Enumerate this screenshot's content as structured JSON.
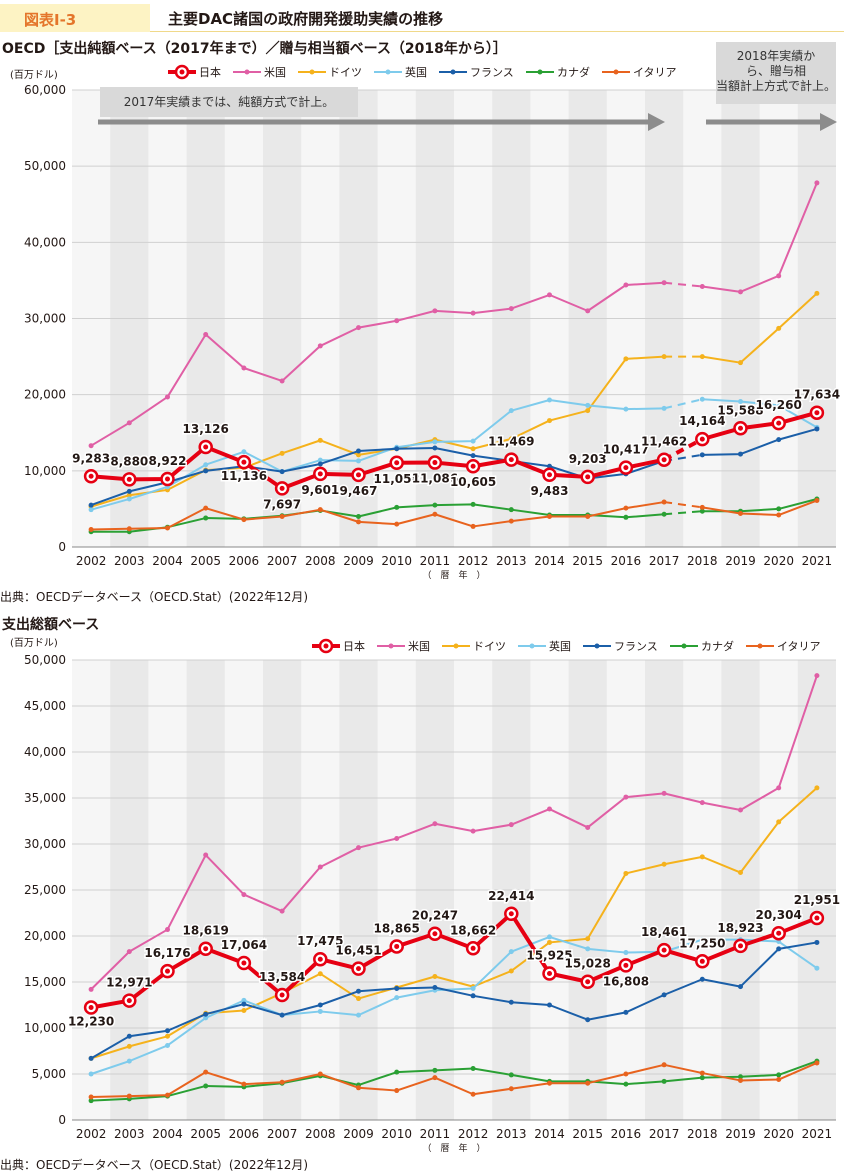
{
  "header": {
    "figure_label": "図表Ⅰ-3",
    "figure_title": "主要DAC諸国の政府開発援助実績の推移"
  },
  "colors": {
    "japan": "#e60012",
    "usa": "#e05fa5",
    "germany": "#f5b21c",
    "uk": "#7ecbec",
    "france": "#1b5fa8",
    "canada": "#2aa034",
    "italy": "#e8631e"
  },
  "legend_labels": [
    "日本",
    "米国",
    "ドイツ",
    "英国",
    "フランス",
    "カナダ",
    "イタリア"
  ],
  "chart_data": [
    {
      "type": "line",
      "title": "OECD［支出純額ベース（2017年まで）／贈与相当額ベース（2018年から）］",
      "ylabel": "(百万ドル)",
      "xlabel": "（　暦　年　）",
      "ylim": [
        0,
        60000
      ],
      "yticks": [
        0,
        10000,
        20000,
        30000,
        40000,
        50000,
        60000
      ],
      "ytick_labels": [
        "0",
        "10,000",
        "20,000",
        "30,000",
        "40,000",
        "50,000",
        "60,000"
      ],
      "categories": [
        "2002",
        "2003",
        "2004",
        "2005",
        "2006",
        "2007",
        "2008",
        "2009",
        "2010",
        "2011",
        "2012",
        "2013",
        "2014",
        "2015",
        "2016",
        "2017",
        "2018",
        "2019",
        "2020",
        "2021"
      ],
      "break_after_index": 15,
      "annotations": [
        "2017年実績までは、純額方式で計上。",
        "2018年実績から、贈与相当額計上方式で計上。"
      ],
      "series": [
        {
          "name": "日本",
          "key": "japan",
          "values": [
            9283,
            8880,
            8922,
            13126,
            11136,
            7697,
            9601,
            9467,
            11058,
            11086,
            10605,
            11469,
            9483,
            9203,
            10417,
            11462,
            14164,
            15588,
            16260,
            17634
          ],
          "labels": [
            "9,283",
            "8,880",
            "8,922",
            "13,126",
            "11,136",
            "7,697",
            "9,601",
            "9,467",
            "11,058",
            "11,086",
            "10,605",
            "11,469",
            "9,483",
            "9,203",
            "10,417",
            "11,462",
            "14,164",
            "15,588",
            "16,260",
            "17,634"
          ]
        },
        {
          "name": "米国",
          "key": "usa",
          "values": [
            13300,
            16300,
            19700,
            27900,
            23500,
            21800,
            26400,
            28800,
            29700,
            31000,
            30700,
            31300,
            33100,
            31000,
            34400,
            34700,
            34200,
            33500,
            35600,
            47800
          ]
        },
        {
          "name": "ドイツ",
          "key": "germany",
          "values": [
            5300,
            6800,
            7500,
            10100,
            10400,
            12300,
            14000,
            12100,
            12900,
            14100,
            12900,
            14200,
            16600,
            17900,
            24700,
            25000,
            25000,
            24200,
            28700,
            33300
          ]
        },
        {
          "name": "英国",
          "key": "uk",
          "values": [
            4900,
            6300,
            7900,
            10800,
            12500,
            9900,
            11400,
            11300,
            13100,
            13800,
            13900,
            17900,
            19300,
            18600,
            18100,
            18200,
            19400,
            19100,
            18600,
            15700
          ]
        },
        {
          "name": "フランス",
          "key": "france",
          "values": [
            5500,
            7300,
            8500,
            10000,
            10600,
            9900,
            10900,
            12600,
            12900,
            13000,
            12000,
            11300,
            10600,
            9000,
            9600,
            11300,
            12100,
            12200,
            14100,
            15500
          ]
        },
        {
          "name": "カナダ",
          "key": "canada",
          "values": [
            2000,
            2000,
            2600,
            3800,
            3700,
            4100,
            4800,
            4000,
            5200,
            5500,
            5600,
            4900,
            4200,
            4200,
            3900,
            4300,
            4700,
            4700,
            5000,
            6300
          ]
        },
        {
          "name": "イタリア",
          "key": "italy",
          "values": [
            2300,
            2400,
            2500,
            5100,
            3600,
            4000,
            4900,
            3300,
            3000,
            4300,
            2700,
            3400,
            4000,
            4000,
            5100,
            5900,
            5200,
            4400,
            4200,
            6100
          ]
        }
      ]
    },
    {
      "type": "line",
      "title": "支出総額ベース",
      "ylabel": "(百万ドル)",
      "xlabel": "（　暦　年　）",
      "ylim": [
        0,
        50000
      ],
      "yticks": [
        0,
        5000,
        10000,
        15000,
        20000,
        25000,
        30000,
        35000,
        40000,
        45000,
        50000
      ],
      "ytick_labels": [
        "0",
        "5,000",
        "10,000",
        "15,000",
        "20,000",
        "25,000",
        "30,000",
        "35,000",
        "40,000",
        "45,000",
        "50,000"
      ],
      "categories": [
        "2002",
        "2003",
        "2004",
        "2005",
        "2006",
        "2007",
        "2008",
        "2009",
        "2010",
        "2011",
        "2012",
        "2013",
        "2014",
        "2015",
        "2016",
        "2017",
        "2018",
        "2019",
        "2020",
        "2021"
      ],
      "break_after_index": -1,
      "series": [
        {
          "name": "日本",
          "key": "japan",
          "values": [
            12230,
            12971,
            16176,
            18619,
            17064,
            13584,
            17475,
            16451,
            18865,
            20247,
            18662,
            22414,
            15925,
            15028,
            16808,
            18461,
            17250,
            18923,
            20304,
            21951
          ],
          "labels": [
            "12,230",
            "12,971",
            "16,176",
            "18,619",
            "17,064",
            "13,584",
            "17,475",
            "16,451",
            "18,865",
            "20,247",
            "18,662",
            "22,414",
            "15,925",
            "15,028",
            "16,808",
            "18,461",
            "17,250",
            "18,923",
            "20,304",
            "21,951"
          ]
        },
        {
          "name": "米国",
          "key": "usa",
          "values": [
            14200,
            18300,
            20700,
            28800,
            24500,
            22700,
            27500,
            29600,
            30600,
            32200,
            31400,
            32100,
            33800,
            31800,
            35100,
            35500,
            34500,
            33700,
            36100,
            48300
          ]
        },
        {
          "name": "ドイツ",
          "key": "germany",
          "values": [
            6700,
            8000,
            9100,
            11600,
            11900,
            13800,
            15900,
            13200,
            14400,
            15600,
            14500,
            16200,
            19300,
            19700,
            26800,
            27800,
            28600,
            26900,
            32400,
            36100
          ]
        },
        {
          "name": "英国",
          "key": "uk",
          "values": [
            5000,
            6400,
            8100,
            11100,
            13000,
            11400,
            11800,
            11400,
            13300,
            14100,
            14300,
            18300,
            19900,
            18600,
            18200,
            18300,
            19600,
            19600,
            19400,
            16500
          ]
        },
        {
          "name": "フランス",
          "key": "france",
          "values": [
            6700,
            9100,
            9700,
            11500,
            12600,
            11400,
            12500,
            14000,
            14300,
            14400,
            13500,
            12800,
            12500,
            10900,
            11700,
            13600,
            15300,
            14500,
            18600,
            19300
          ]
        },
        {
          "name": "カナダ",
          "key": "canada",
          "values": [
            2100,
            2300,
            2600,
            3700,
            3600,
            4000,
            4800,
            3800,
            5200,
            5400,
            5600,
            4900,
            4200,
            4200,
            3900,
            4200,
            4600,
            4700,
            4900,
            6400
          ]
        },
        {
          "name": "イタリア",
          "key": "italy",
          "values": [
            2500,
            2600,
            2700,
            5200,
            3900,
            4100,
            5000,
            3500,
            3200,
            4600,
            2800,
            3400,
            4000,
            4000,
            5000,
            6000,
            5100,
            4300,
            4400,
            6200
          ]
        }
      ]
    }
  ],
  "source": "出典：OECDデータベース（OECD.Stat）(2022年12月)"
}
